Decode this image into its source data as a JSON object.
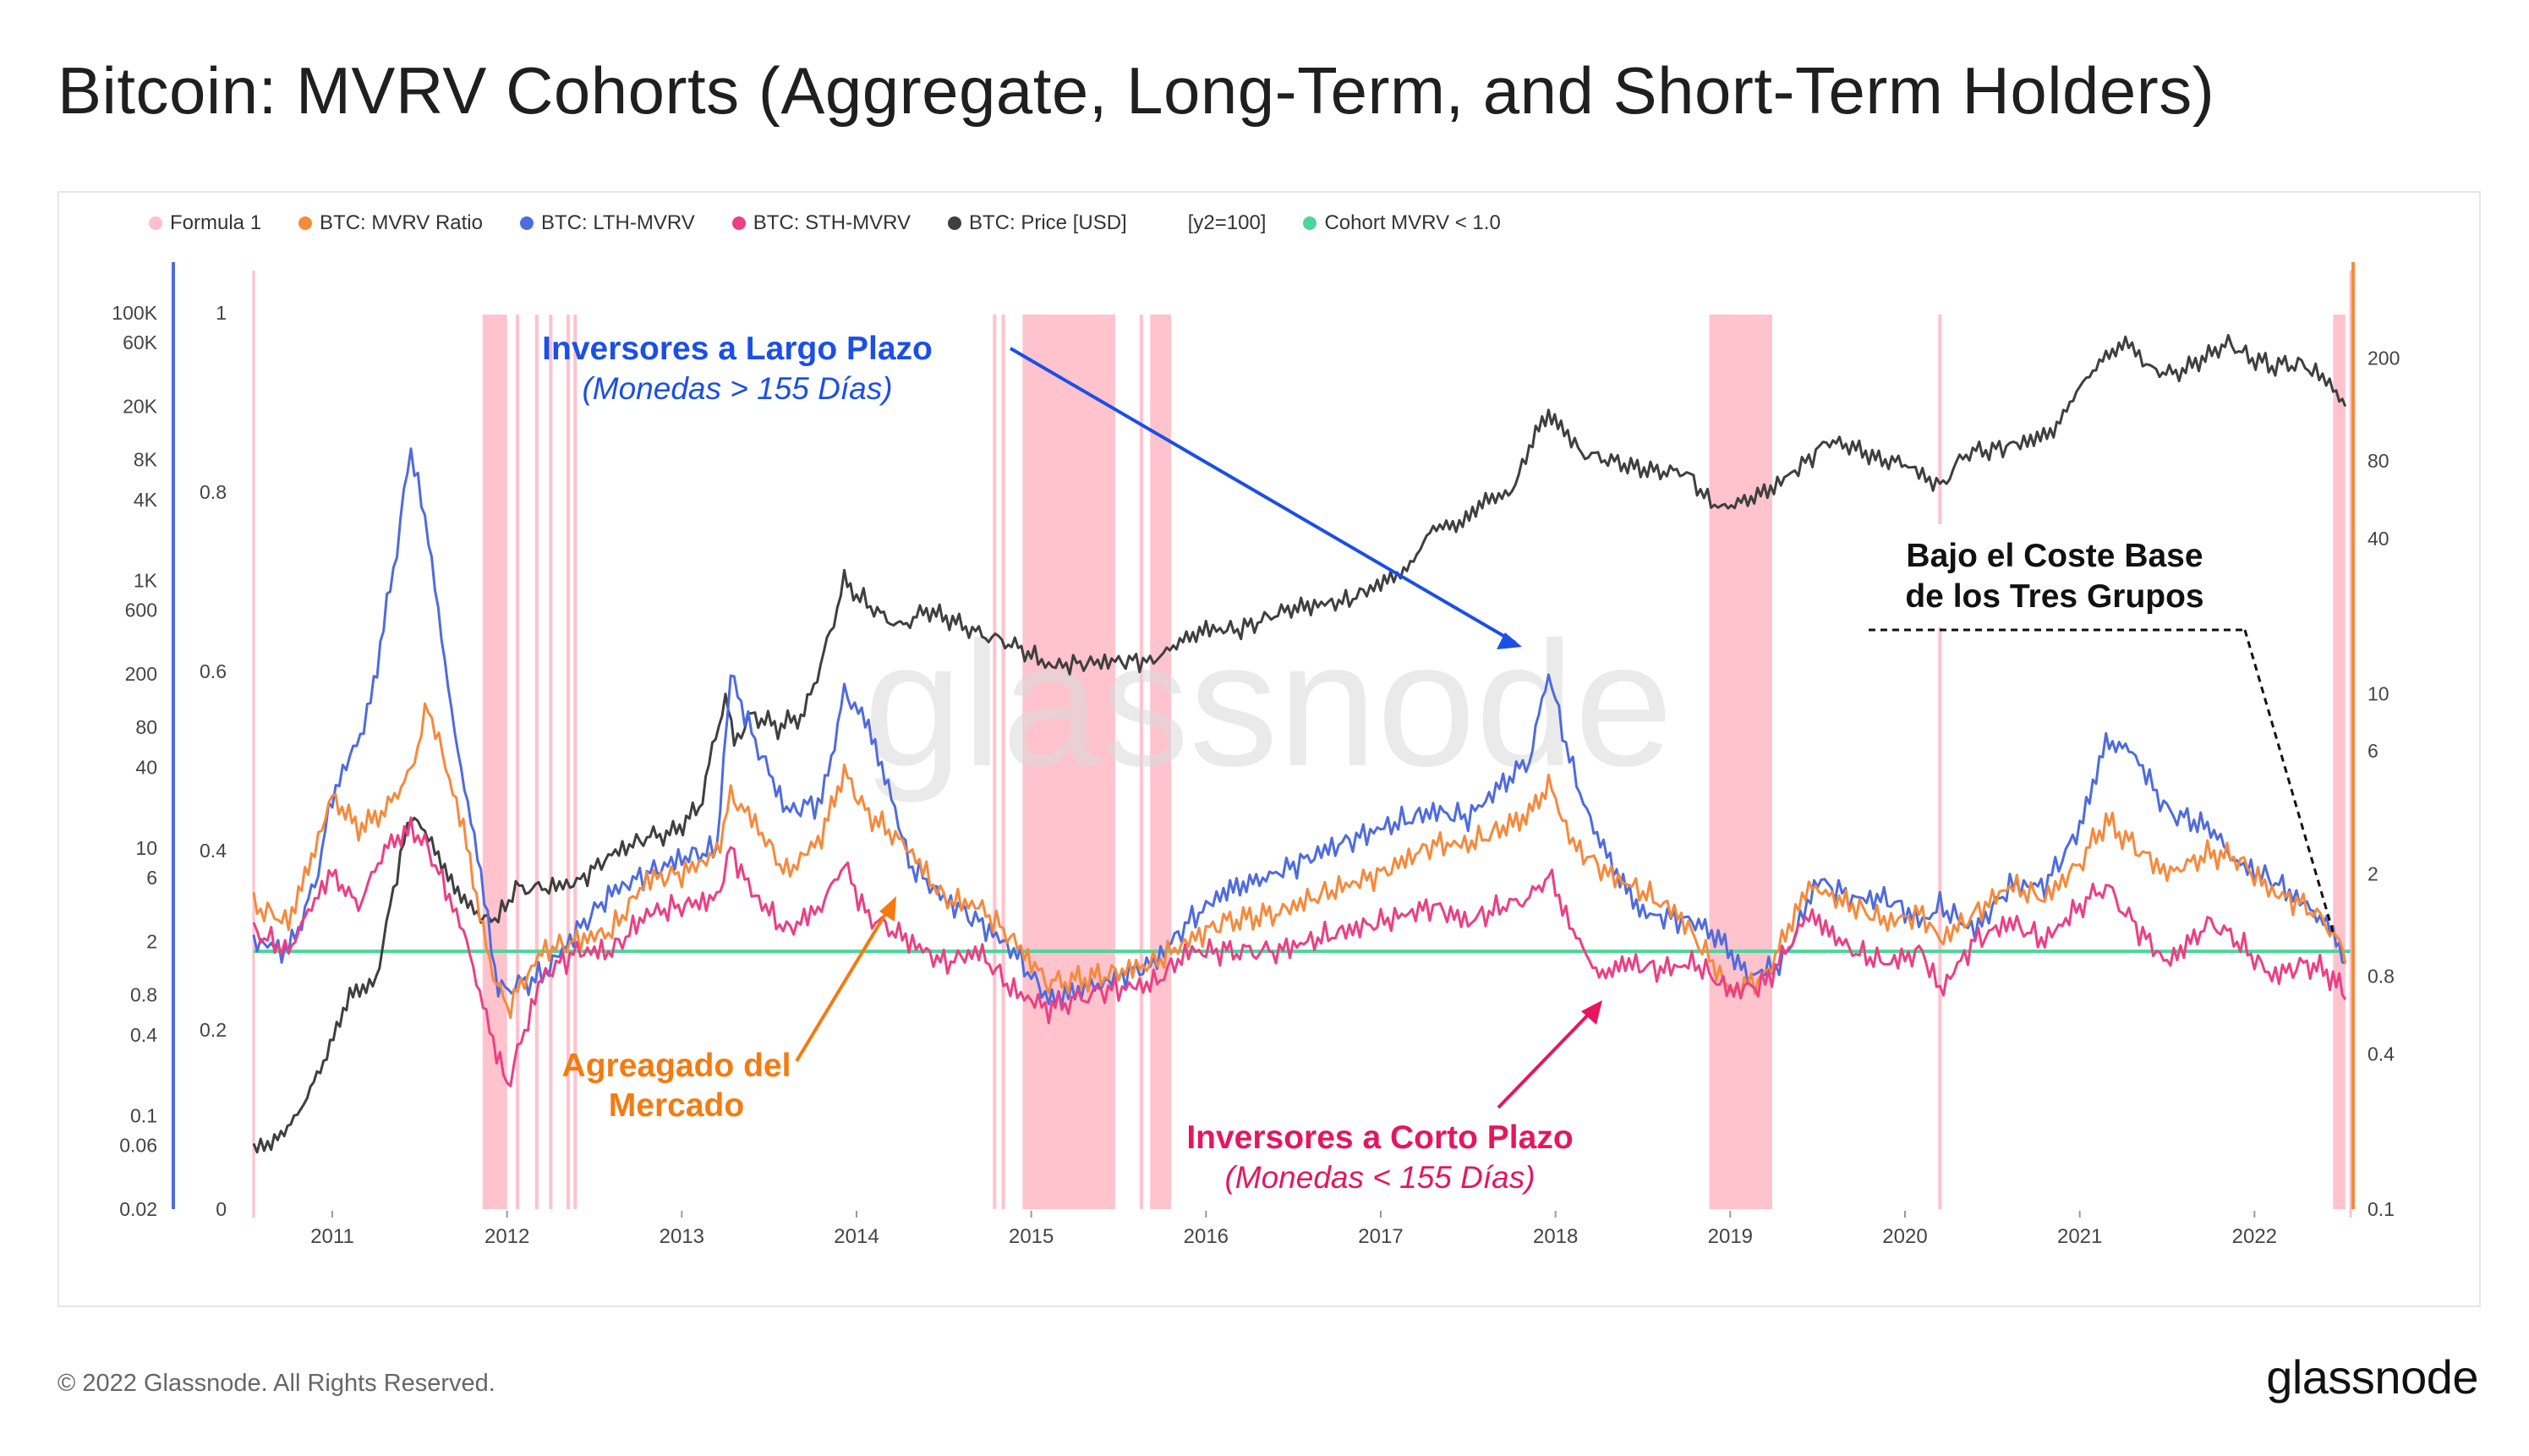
{
  "page": {
    "title": "Bitcoin: MVRV Cohorts (Aggregate, Long-Term, and Short-Term Holders)",
    "copyright": "© 2022 Glassnode. All Rights Reserved.",
    "brand": "glassnode",
    "watermark": "glassnode"
  },
  "colors": {
    "formula1": "#ffc0cb",
    "mvrv": "#f7893b",
    "lth": "#4f6bde",
    "sth": "#ec3f84",
    "price": "#3f3f3f",
    "cohort_line": "#4cd69a",
    "annotation_blue": "#1b4fe6",
    "annotation_orange": "#f57a0f",
    "annotation_pink": "#e5165f"
  },
  "legend": [
    {
      "label": "Formula 1",
      "color": "#ffc0cb"
    },
    {
      "label": "BTC: MVRV Ratio",
      "color": "#f7893b"
    },
    {
      "label": "BTC: LTH-MVRV",
      "color": "#4f6bde"
    },
    {
      "label": "BTC: STH-MVRV",
      "color": "#ec3f84"
    },
    {
      "label": "BTC: Price [USD]",
      "color": "#3f3f3f"
    },
    {
      "label": "[y2=100]",
      "color": ""
    },
    {
      "label": "Cohort MVRV < 1.0",
      "color": "#4cd69a"
    }
  ],
  "annotations": {
    "lth_title": "Inversores a Largo Plazo",
    "lth_sub": "(Monedas > 155 Días)",
    "market_line1": "Agreagado del",
    "market_line2": "Mercado",
    "sth_title": "Inversores a Corto Plazo",
    "sth_sub": "(Monedas < 155 Días)",
    "cost_line1": "Bajo el Coste Base",
    "cost_line2": "de los Tres Grupos"
  },
  "chart_data": {
    "type": "line",
    "x_range": [
      2010.55,
      2022.55
    ],
    "x_ticks": [
      "2011",
      "2012",
      "2013",
      "2014",
      "2015",
      "2016",
      "2017",
      "2018",
      "2019",
      "2020",
      "2021",
      "2022"
    ],
    "axes": {
      "price_log_ticks": [
        "100K",
        "60K",
        "20K",
        "8K",
        "4K",
        "1K",
        "600",
        "200",
        "80",
        "40",
        "10",
        "6",
        "2",
        "0.8",
        "0.4",
        "0.1",
        "0.06",
        "0.02"
      ],
      "formula_ticks": [
        "1",
        "0.8",
        "0.6",
        "0.4",
        "0.2",
        "0"
      ],
      "mvrv_log_ticks": [
        "200",
        "80",
        "40",
        "10",
        "6",
        "2",
        "0.8",
        "0.4",
        "0.1"
      ],
      "price_range_usd": [
        0.02,
        100000
      ],
      "mvrv_range": [
        0.1,
        300
      ],
      "formula_range": [
        0,
        1
      ]
    },
    "cohort_threshold": 1.0,
    "formula1_periods": [
      [
        2011.86,
        2012.0
      ],
      [
        2012.05,
        2012.07
      ],
      [
        2012.16,
        2012.18
      ],
      [
        2012.24,
        2012.26
      ],
      [
        2012.34,
        2012.36
      ],
      [
        2012.38,
        2012.4
      ],
      [
        2014.78,
        2014.8
      ],
      [
        2014.83,
        2014.85
      ],
      [
        2014.95,
        2015.48
      ],
      [
        2015.62,
        2015.64
      ],
      [
        2015.68,
        2015.8
      ],
      [
        2018.88,
        2019.24
      ],
      [
        2020.19,
        2020.21
      ],
      [
        2022.45,
        2022.52
      ]
    ],
    "series": [
      {
        "name": "BTC: Price [USD]",
        "axis": "price",
        "x": [
          2010.55,
          2010.65,
          2010.8,
          2010.95,
          2011.1,
          2011.25,
          2011.35,
          2011.45,
          2011.55,
          2011.7,
          2011.85,
          2011.95,
          2012.05,
          2012.2,
          2012.4,
          2012.6,
          2012.8,
          2012.95,
          2013.1,
          2013.25,
          2013.3,
          2013.4,
          2013.55,
          2013.7,
          2013.85,
          2013.93,
          2014.0,
          2014.1,
          2014.25,
          2014.4,
          2014.55,
          2014.7,
          2014.85,
          2015.0,
          2015.1,
          2015.3,
          2015.5,
          2015.7,
          2015.85,
          2016.0,
          2016.2,
          2016.45,
          2016.6,
          2016.8,
          2017.0,
          2017.15,
          2017.3,
          2017.45,
          2017.6,
          2017.75,
          2017.85,
          2017.96,
          2018.05,
          2018.15,
          2018.3,
          2018.45,
          2018.6,
          2018.75,
          2018.87,
          2018.95,
          2019.1,
          2019.25,
          2019.45,
          2019.55,
          2019.7,
          2019.85,
          2020.0,
          2020.2,
          2020.35,
          2020.5,
          2020.7,
          2020.85,
          2021.0,
          2021.15,
          2021.28,
          2021.4,
          2021.55,
          2021.7,
          2021.85,
          2021.95,
          2022.1,
          2022.25,
          2022.35,
          2022.45,
          2022.52
        ],
        "values": [
          0.06,
          0.06,
          0.1,
          0.25,
          0.8,
          1,
          5,
          18,
          12,
          5,
          3,
          3,
          5,
          5,
          5.5,
          9,
          12,
          13,
          20,
          140,
          60,
          100,
          80,
          100,
          400,
          1000,
          800,
          600,
          450,
          600,
          500,
          400,
          350,
          280,
          230,
          240,
          250,
          250,
          350,
          430,
          430,
          600,
          650,
          700,
          950,
          1200,
          2500,
          2600,
          4000,
          4500,
          10000,
          18000,
          13000,
          9000,
          8000,
          7000,
          6500,
          6500,
          4000,
          3500,
          4000,
          5000,
          8000,
          11000,
          10000,
          8000,
          7500,
          5000,
          9000,
          9500,
          11000,
          13000,
          28000,
          48000,
          60000,
          38000,
          35000,
          45000,
          60000,
          48000,
          40000,
          42000,
          36000,
          28000,
          20000
        ]
      },
      {
        "name": "BTC: MVRV Ratio",
        "axis": "mvrv",
        "x": [
          2010.55,
          2010.75,
          2010.9,
          2011.0,
          2011.15,
          2011.3,
          2011.45,
          2011.55,
          2011.75,
          2011.9,
          2012.0,
          2012.2,
          2012.4,
          2012.6,
          2012.8,
          2013.0,
          2013.2,
          2013.28,
          2013.4,
          2013.6,
          2013.8,
          2013.93,
          2014.05,
          2014.3,
          2014.5,
          2014.7,
          2014.9,
          2015.1,
          2015.4,
          2015.7,
          2015.9,
          2016.1,
          2016.4,
          2016.6,
          2016.8,
          2017.0,
          2017.3,
          2017.5,
          2017.7,
          2017.85,
          2017.96,
          2018.1,
          2018.3,
          2018.5,
          2018.7,
          2018.9,
          2019.0,
          2019.2,
          2019.45,
          2019.7,
          2019.9,
          2020.1,
          2020.2,
          2020.4,
          2020.6,
          2020.8,
          2021.0,
          2021.15,
          2021.3,
          2021.5,
          2021.75,
          2021.9,
          2022.1,
          2022.3,
          2022.45,
          2022.52
        ],
        "values": [
          1.5,
          1.3,
          2.5,
          4,
          3,
          3.5,
          5,
          9,
          3,
          0.9,
          0.6,
          1,
          1.1,
          1.2,
          1.9,
          2,
          2.4,
          4,
          3.3,
          2,
          2.8,
          5,
          3.5,
          2.5,
          1.6,
          1.5,
          1.1,
          0.75,
          0.8,
          0.9,
          1.1,
          1.3,
          1.4,
          1.6,
          1.8,
          2,
          2.6,
          2.6,
          3,
          3.4,
          4.5,
          2.6,
          2,
          1.7,
          1.4,
          0.9,
          0.7,
          0.8,
          1.8,
          1.5,
          1.3,
          1.4,
          1.1,
          1.4,
          1.8,
          1.6,
          2.2,
          3.2,
          2.6,
          2,
          2.4,
          2.3,
          1.7,
          1.5,
          1.2,
          0.9
        ]
      },
      {
        "name": "BTC: LTH-MVRV",
        "axis": "mvrv",
        "x": [
          2010.55,
          2010.75,
          2010.9,
          2011.0,
          2011.2,
          2011.35,
          2011.45,
          2011.55,
          2011.7,
          2011.85,
          2011.95,
          2012.2,
          2012.4,
          2012.6,
          2012.8,
          2013.0,
          2013.2,
          2013.28,
          2013.4,
          2013.6,
          2013.8,
          2013.93,
          2014.05,
          2014.2,
          2014.3,
          2014.5,
          2014.7,
          2014.9,
          2015.1,
          2015.4,
          2015.7,
          2015.9,
          2016.1,
          2016.4,
          2016.7,
          2017.0,
          2017.3,
          2017.5,
          2017.7,
          2017.85,
          2017.96,
          2018.1,
          2018.2,
          2018.35,
          2018.5,
          2018.8,
          2018.95,
          2019.1,
          2019.3,
          2019.5,
          2019.7,
          2019.9,
          2020.1,
          2020.2,
          2020.4,
          2020.6,
          2020.8,
          2021.0,
          2021.15,
          2021.3,
          2021.5,
          2021.75,
          2021.9,
          2022.1,
          2022.3,
          2022.45,
          2022.52
        ],
        "values": [
          1.1,
          1.0,
          1.8,
          4,
          8,
          30,
          90,
          40,
          7,
          2,
          0.7,
          0.8,
          1.2,
          1.7,
          2,
          2.3,
          2.5,
          12,
          7,
          3.5,
          3.8,
          10,
          8,
          4,
          2.2,
          1.6,
          1.3,
          1.0,
          0.65,
          0.75,
          0.9,
          1.3,
          1.7,
          2,
          2.5,
          3,
          3.5,
          3.3,
          4.5,
          5.5,
          12,
          5,
          3.2,
          2,
          1.4,
          1.3,
          1.1,
          0.8,
          0.9,
          1.9,
          1.6,
          1.6,
          1.3,
          1.5,
          1.2,
          1.8,
          1.8,
          3,
          6.5,
          6,
          3.5,
          3,
          2.2,
          1.9,
          1.5,
          1.2,
          0.9
        ]
      },
      {
        "name": "BTC: STH-MVRV",
        "axis": "mvrv",
        "x": [
          2010.55,
          2010.75,
          2010.9,
          2011.0,
          2011.15,
          2011.3,
          2011.45,
          2011.55,
          2011.75,
          2011.9,
          2012.0,
          2012.2,
          2012.4,
          2012.6,
          2012.8,
          2013.0,
          2013.2,
          2013.28,
          2013.4,
          2013.6,
          2013.8,
          2013.93,
          2014.05,
          2014.3,
          2014.5,
          2014.7,
          2014.9,
          2015.1,
          2015.4,
          2015.7,
          2015.9,
          2016.1,
          2016.4,
          2016.6,
          2016.8,
          2017.0,
          2017.3,
          2017.5,
          2017.7,
          2017.85,
          2017.96,
          2018.1,
          2018.25,
          2018.4,
          2018.6,
          2018.8,
          2019.0,
          2019.2,
          2019.45,
          2019.7,
          2019.9,
          2020.1,
          2020.2,
          2020.4,
          2020.6,
          2020.8,
          2021.0,
          2021.15,
          2021.3,
          2021.5,
          2021.75,
          2021.9,
          2022.1,
          2022.3,
          2022.45,
          2022.52
        ],
        "values": [
          1.2,
          1.0,
          1.6,
          2,
          1.5,
          2.5,
          3,
          2.5,
          1.2,
          0.5,
          0.3,
          0.8,
          1,
          1,
          1.4,
          1.5,
          1.6,
          2.5,
          1.7,
          1.2,
          1.5,
          2.2,
          1.4,
          1.1,
          0.9,
          1.0,
          0.7,
          0.6,
          0.7,
          0.75,
          1.0,
          1.0,
          1.0,
          1.1,
          1.2,
          1.3,
          1.5,
          1.3,
          1.5,
          1.6,
          2,
          1.2,
          0.8,
          0.9,
          0.85,
          0.9,
          0.7,
          0.75,
          1.4,
          1.0,
          0.9,
          1.0,
          0.7,
          1.1,
          1.3,
          1.1,
          1.5,
          1.8,
          1.3,
          0.9,
          1.3,
          1.1,
          0.8,
          0.9,
          0.8,
          0.65
        ]
      }
    ]
  }
}
